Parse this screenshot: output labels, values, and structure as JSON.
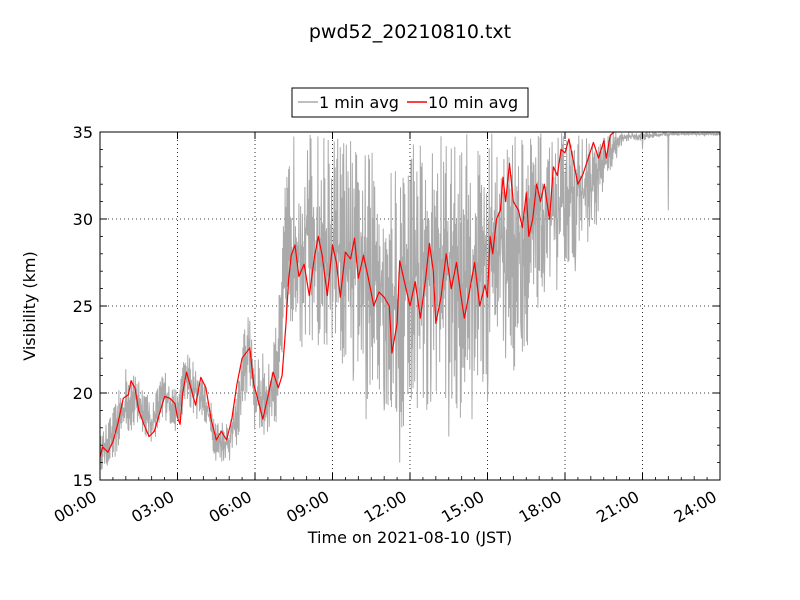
{
  "chart_data": {
    "type": "line",
    "title": "pwd52_20210810.txt",
    "xlabel": "Time on 2021-08-10 (JST)",
    "ylabel": "Visibility (km)",
    "x_unit": "hour of day",
    "xlim": [
      0,
      24
    ],
    "ylim": [
      15,
      35
    ],
    "xticks": [
      {
        "value": 0,
        "label": "00:00"
      },
      {
        "value": 3,
        "label": "03:00"
      },
      {
        "value": 6,
        "label": "06:00"
      },
      {
        "value": 9,
        "label": "09:00"
      },
      {
        "value": 12,
        "label": "12:00"
      },
      {
        "value": 15,
        "label": "15:00"
      },
      {
        "value": 18,
        "label": "18:00"
      },
      {
        "value": 21,
        "label": "21:00"
      },
      {
        "value": 24,
        "label": "24:00"
      }
    ],
    "yticks": [
      {
        "value": 15,
        "label": "15"
      },
      {
        "value": 20,
        "label": "20"
      },
      {
        "value": 25,
        "label": "25"
      },
      {
        "value": 30,
        "label": "30"
      },
      {
        "value": 35,
        "label": "35"
      }
    ],
    "grid": true,
    "legend_position": "top-center",
    "series": [
      {
        "name": "1 min avg",
        "color": "#aaaaaa",
        "envelope": [
          [
            0.0,
            15.5,
            17.5
          ],
          [
            0.5,
            16.0,
            19.0
          ],
          [
            1.0,
            17.5,
            21.5
          ],
          [
            1.5,
            18.0,
            21.0
          ],
          [
            2.0,
            17.0,
            19.5
          ],
          [
            2.5,
            18.5,
            21.5
          ],
          [
            3.0,
            17.5,
            20.0
          ],
          [
            3.3,
            19.5,
            22.5
          ],
          [
            3.6,
            18.5,
            22.0
          ],
          [
            4.0,
            18.5,
            21.0
          ],
          [
            4.5,
            16.0,
            18.5
          ],
          [
            5.0,
            16.0,
            18.5
          ],
          [
            5.3,
            17.0,
            20.0
          ],
          [
            5.6,
            19.0,
            24.0
          ],
          [
            5.8,
            20.5,
            25.0
          ],
          [
            6.0,
            17.5,
            22.0
          ],
          [
            6.5,
            17.0,
            22.5
          ],
          [
            6.8,
            18.0,
            24.0
          ],
          [
            7.0,
            20.5,
            26.5
          ],
          [
            7.2,
            24.0,
            33.0
          ],
          [
            7.5,
            22.0,
            35.0
          ],
          [
            8.0,
            22.5,
            35.0
          ],
          [
            8.5,
            21.0,
            35.0
          ],
          [
            9.0,
            21.5,
            35.0
          ],
          [
            9.5,
            20.0,
            35.0
          ],
          [
            10.0,
            21.0,
            34.0
          ],
          [
            10.5,
            19.0,
            34.0
          ],
          [
            11.0,
            19.5,
            33.0
          ],
          [
            11.5,
            17.0,
            33.0
          ],
          [
            12.0,
            19.0,
            35.0
          ],
          [
            12.5,
            18.5,
            35.0
          ],
          [
            13.0,
            20.0,
            35.0
          ],
          [
            13.5,
            19.5,
            35.0
          ],
          [
            14.0,
            18.0,
            35.0
          ],
          [
            14.5,
            19.5,
            35.0
          ],
          [
            15.0,
            20.5,
            35.0
          ],
          [
            15.5,
            22.5,
            35.0
          ],
          [
            16.0,
            21.0,
            35.0
          ],
          [
            16.5,
            22.5,
            35.0
          ],
          [
            17.0,
            25.0,
            35.0
          ],
          [
            17.5,
            25.0,
            35.0
          ],
          [
            18.0,
            27.0,
            35.0
          ],
          [
            18.5,
            28.0,
            35.0
          ],
          [
            19.0,
            28.5,
            35.0
          ],
          [
            19.5,
            31.0,
            35.0
          ],
          [
            20.0,
            34.0,
            35.0
          ],
          [
            20.5,
            34.5,
            35.0
          ],
          [
            21.0,
            34.5,
            35.0
          ],
          [
            22.0,
            34.8,
            35.0
          ],
          [
            23.0,
            34.8,
            35.0
          ],
          [
            24.0,
            34.8,
            35.0
          ]
        ],
        "dips": [
          [
            8.9,
            25.8
          ],
          [
            9.8,
            20.7
          ],
          [
            10.3,
            18.5
          ],
          [
            11.0,
            19.0
          ],
          [
            11.6,
            16.0
          ],
          [
            12.8,
            19.5
          ],
          [
            13.5,
            17.5
          ],
          [
            14.4,
            18.5
          ],
          [
            15.0,
            19.5
          ],
          [
            15.7,
            22.0
          ],
          [
            16.3,
            23.5
          ],
          [
            17.2,
            25.8
          ],
          [
            18.4,
            27.0
          ],
          [
            20.0,
            33.5
          ],
          [
            21.0,
            34.0
          ],
          [
            22.0,
            30.5
          ]
        ]
      },
      {
        "name": "10 min avg",
        "color": "#ff0000",
        "points": [
          [
            0.0,
            16.3
          ],
          [
            0.1,
            16.9
          ],
          [
            0.3,
            16.6
          ],
          [
            0.5,
            17.2
          ],
          [
            0.7,
            18.3
          ],
          [
            0.9,
            19.7
          ],
          [
            1.1,
            19.9
          ],
          [
            1.2,
            20.7
          ],
          [
            1.35,
            20.3
          ],
          [
            1.5,
            19.0
          ],
          [
            1.7,
            18.2
          ],
          [
            1.9,
            17.5
          ],
          [
            2.1,
            17.8
          ],
          [
            2.3,
            18.8
          ],
          [
            2.5,
            19.8
          ],
          [
            2.7,
            19.7
          ],
          [
            2.9,
            19.4
          ],
          [
            3.0,
            18.6
          ],
          [
            3.1,
            18.2
          ],
          [
            3.2,
            20.0
          ],
          [
            3.35,
            21.2
          ],
          [
            3.5,
            20.4
          ],
          [
            3.7,
            19.3
          ],
          [
            3.9,
            20.9
          ],
          [
            4.1,
            20.3
          ],
          [
            4.3,
            18.5
          ],
          [
            4.5,
            17.3
          ],
          [
            4.7,
            17.8
          ],
          [
            4.9,
            17.3
          ],
          [
            5.1,
            18.5
          ],
          [
            5.3,
            20.5
          ],
          [
            5.5,
            22.0
          ],
          [
            5.7,
            22.4
          ],
          [
            5.8,
            22.6
          ],
          [
            5.95,
            20.5
          ],
          [
            6.1,
            19.7
          ],
          [
            6.3,
            18.5
          ],
          [
            6.5,
            19.8
          ],
          [
            6.7,
            21.2
          ],
          [
            6.9,
            20.3
          ],
          [
            7.05,
            21.0
          ],
          [
            7.2,
            24.0
          ],
          [
            7.3,
            26.5
          ],
          [
            7.4,
            27.9
          ],
          [
            7.55,
            28.5
          ],
          [
            7.7,
            26.7
          ],
          [
            7.9,
            27.4
          ],
          [
            8.1,
            25.6
          ],
          [
            8.3,
            27.8
          ],
          [
            8.45,
            29.0
          ],
          [
            8.6,
            27.9
          ],
          [
            8.8,
            25.6
          ],
          [
            9.0,
            28.5
          ],
          [
            9.15,
            27.5
          ],
          [
            9.3,
            25.5
          ],
          [
            9.5,
            28.1
          ],
          [
            9.7,
            27.7
          ],
          [
            9.85,
            28.9
          ],
          [
            10.0,
            26.6
          ],
          [
            10.2,
            27.9
          ],
          [
            10.4,
            26.5
          ],
          [
            10.6,
            25.0
          ],
          [
            10.8,
            25.8
          ],
          [
            11.0,
            25.5
          ],
          [
            11.2,
            25.0
          ],
          [
            11.3,
            22.3
          ],
          [
            11.5,
            24.0
          ],
          [
            11.6,
            27.6
          ],
          [
            11.8,
            26.3
          ],
          [
            12.0,
            25.0
          ],
          [
            12.2,
            26.4
          ],
          [
            12.4,
            24.3
          ],
          [
            12.6,
            26.5
          ],
          [
            12.75,
            28.6
          ],
          [
            12.9,
            27.0
          ],
          [
            13.0,
            24.0
          ],
          [
            13.2,
            25.5
          ],
          [
            13.4,
            28.0
          ],
          [
            13.6,
            26.0
          ],
          [
            13.8,
            27.5
          ],
          [
            13.95,
            25.8
          ],
          [
            14.1,
            24.3
          ],
          [
            14.3,
            25.8
          ],
          [
            14.5,
            27.5
          ],
          [
            14.7,
            25.0
          ],
          [
            14.9,
            26.2
          ],
          [
            15.0,
            25.5
          ],
          [
            15.1,
            29.0
          ],
          [
            15.2,
            28.0
          ],
          [
            15.35,
            30.0
          ],
          [
            15.5,
            30.5
          ],
          [
            15.6,
            32.4
          ],
          [
            15.7,
            31.0
          ],
          [
            15.85,
            33.2
          ],
          [
            16.0,
            31.0
          ],
          [
            16.2,
            30.5
          ],
          [
            16.35,
            29.5
          ],
          [
            16.5,
            31.5
          ],
          [
            16.6,
            29.0
          ],
          [
            16.75,
            30.0
          ],
          [
            16.9,
            32.0
          ],
          [
            17.05,
            31.0
          ],
          [
            17.2,
            32.0
          ],
          [
            17.4,
            30.0
          ],
          [
            17.55,
            33.0
          ],
          [
            17.7,
            32.5
          ],
          [
            17.85,
            34.0
          ],
          [
            18.0,
            33.8
          ],
          [
            18.15,
            34.6
          ],
          [
            18.3,
            33.5
          ],
          [
            18.5,
            32.0
          ],
          [
            18.7,
            32.6
          ],
          [
            18.9,
            33.5
          ],
          [
            19.1,
            34.4
          ],
          [
            19.3,
            33.5
          ],
          [
            19.5,
            34.5
          ],
          [
            19.6,
            33.5
          ],
          [
            19.75,
            34.8
          ],
          [
            19.9,
            35.0
          ]
        ]
      }
    ]
  }
}
